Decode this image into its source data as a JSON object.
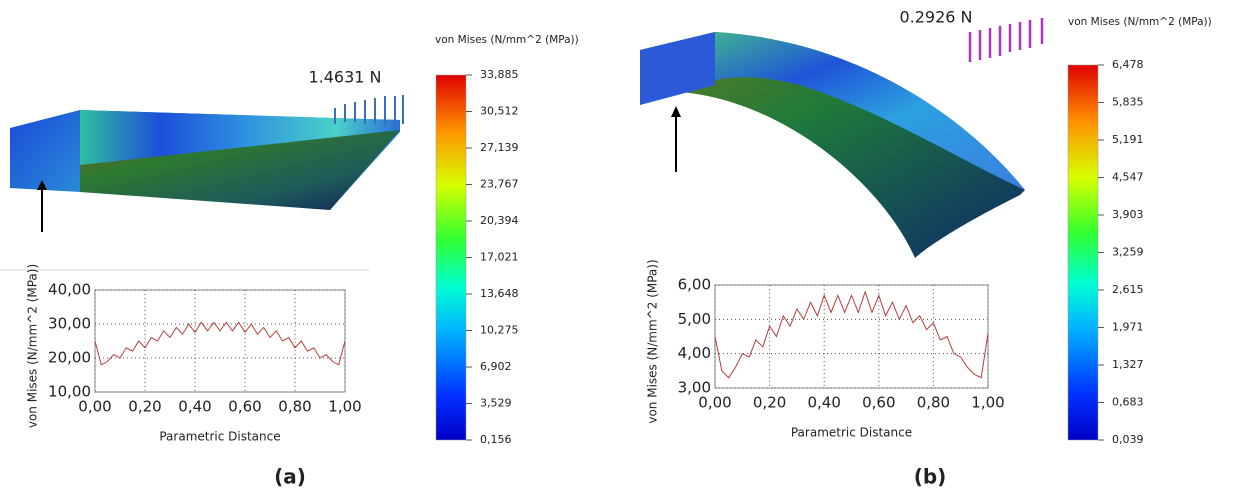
{
  "panels": [
    {
      "label": "(a)",
      "force": "1.4631 N",
      "colorbar": {
        "title": "von Mises (N/mm^2 (MPa))",
        "lim": [
          0.156,
          33.885
        ],
        "ticks": [
          {
            "value": 33.885,
            "label": "33,885"
          },
          {
            "value": 30.512,
            "label": "30,512"
          },
          {
            "value": 27.139,
            "label": "27,139"
          },
          {
            "value": 23.767,
            "label": "23,767"
          },
          {
            "value": 20.394,
            "label": "20,394"
          },
          {
            "value": 17.021,
            "label": "17,021"
          },
          {
            "value": 13.648,
            "label": "13,648"
          },
          {
            "value": 10.275,
            "label": "10,275"
          },
          {
            "value": 6.902,
            "label": "6,902"
          },
          {
            "value": 3.529,
            "label": "3,529"
          },
          {
            "value": 0.156,
            "label": "0,156"
          }
        ]
      }
    },
    {
      "label": "(b)",
      "force": "0.2926 N",
      "colorbar": {
        "title": "von Mises (N/mm^2 (MPa))",
        "lim": [
          0.039,
          6.478
        ],
        "ticks": [
          {
            "value": 6.478,
            "label": "6,478"
          },
          {
            "value": 5.835,
            "label": "5,835"
          },
          {
            "value": 5.191,
            "label": "5,191"
          },
          {
            "value": 4.547,
            "label": "4,547"
          },
          {
            "value": 3.903,
            "label": "3,903"
          },
          {
            "value": 3.259,
            "label": "3,259"
          },
          {
            "value": 2.615,
            "label": "2,615"
          },
          {
            "value": 1.971,
            "label": "1,971"
          },
          {
            "value": 1.327,
            "label": "1,327"
          },
          {
            "value": 0.683,
            "label": "0,683"
          },
          {
            "value": 0.039,
            "label": "0,039"
          }
        ]
      }
    }
  ],
  "chart_data": [
    {
      "type": "line",
      "x_label": "Parametric Distance",
      "y_label": "von Mises (N/mm^2 (MPa))",
      "x": [
        0,
        0.025,
        0.05,
        0.075,
        0.1,
        0.125,
        0.15,
        0.175,
        0.2,
        0.225,
        0.25,
        0.275,
        0.3,
        0.325,
        0.35,
        0.375,
        0.4,
        0.425,
        0.45,
        0.475,
        0.5,
        0.525,
        0.55,
        0.575,
        0.6,
        0.625,
        0.65,
        0.675,
        0.7,
        0.725,
        0.75,
        0.775,
        0.8,
        0.825,
        0.85,
        0.875,
        0.9,
        0.925,
        0.95,
        0.975,
        1
      ],
      "series": [
        {
          "color": "#b5403a",
          "values": [
            25,
            18,
            19,
            21,
            20,
            23,
            22,
            25,
            23,
            26,
            25,
            28,
            26,
            29,
            27,
            30,
            27.5,
            30.5,
            28,
            30.5,
            28,
            30.5,
            28,
            30.5,
            27.5,
            30,
            27,
            29,
            26,
            28,
            25,
            26,
            23,
            25,
            22,
            23,
            20,
            21,
            19,
            18,
            25
          ]
        }
      ],
      "xlim": [
        0,
        1
      ],
      "xticks": [
        {
          "value": 0,
          "label": "0,00"
        },
        {
          "value": 0.2,
          "label": "0,20"
        },
        {
          "value": 0.4,
          "label": "0,40"
        },
        {
          "value": 0.6,
          "label": "0,60"
        },
        {
          "value": 0.8,
          "label": "0,80"
        },
        {
          "value": 1,
          "label": "1,00"
        }
      ],
      "ylim": [
        10,
        40
      ],
      "yticks": [
        {
          "value": 10,
          "label": "10,00"
        },
        {
          "value": 20,
          "label": "20,00"
        },
        {
          "value": 30,
          "label": "30,00"
        },
        {
          "value": 40,
          "label": "40,00"
        }
      ],
      "grid": true
    },
    {
      "type": "line",
      "x_label": "Parametric Distance",
      "y_label": "von Mises (N/mm^2 (MPa))",
      "x": [
        0,
        0.025,
        0.05,
        0.075,
        0.1,
        0.125,
        0.15,
        0.175,
        0.2,
        0.225,
        0.25,
        0.275,
        0.3,
        0.325,
        0.35,
        0.375,
        0.4,
        0.425,
        0.45,
        0.475,
        0.5,
        0.525,
        0.55,
        0.575,
        0.6,
        0.625,
        0.65,
        0.675,
        0.7,
        0.725,
        0.75,
        0.775,
        0.8,
        0.825,
        0.85,
        0.875,
        0.9,
        0.925,
        0.95,
        0.975,
        1
      ],
      "series": [
        {
          "color": "#b5403a",
          "values": [
            4.5,
            3.5,
            3.3,
            3.6,
            4.0,
            3.9,
            4.4,
            4.2,
            4.8,
            4.5,
            5.1,
            4.8,
            5.3,
            5.0,
            5.5,
            5.1,
            5.7,
            5.2,
            5.7,
            5.2,
            5.7,
            5.2,
            5.8,
            5.2,
            5.7,
            5.1,
            5.5,
            5.0,
            5.4,
            4.9,
            5.1,
            4.7,
            4.9,
            4.4,
            4.5,
            4.0,
            3.9,
            3.6,
            3.4,
            3.3,
            4.6
          ]
        }
      ],
      "xlim": [
        0,
        1
      ],
      "xticks": [
        {
          "value": 0,
          "label": "0,00"
        },
        {
          "value": 0.2,
          "label": "0,20"
        },
        {
          "value": 0.4,
          "label": "0,40"
        },
        {
          "value": 0.6,
          "label": "0,60"
        },
        {
          "value": 0.8,
          "label": "0,80"
        },
        {
          "value": 1,
          "label": "1,00"
        }
      ],
      "ylim": [
        3,
        6
      ],
      "yticks": [
        {
          "value": 3,
          "label": "3,00"
        },
        {
          "value": 4,
          "label": "4,00"
        },
        {
          "value": 5,
          "label": "5,00"
        },
        {
          "value": 6,
          "label": "6,00"
        }
      ],
      "grid": true
    }
  ]
}
